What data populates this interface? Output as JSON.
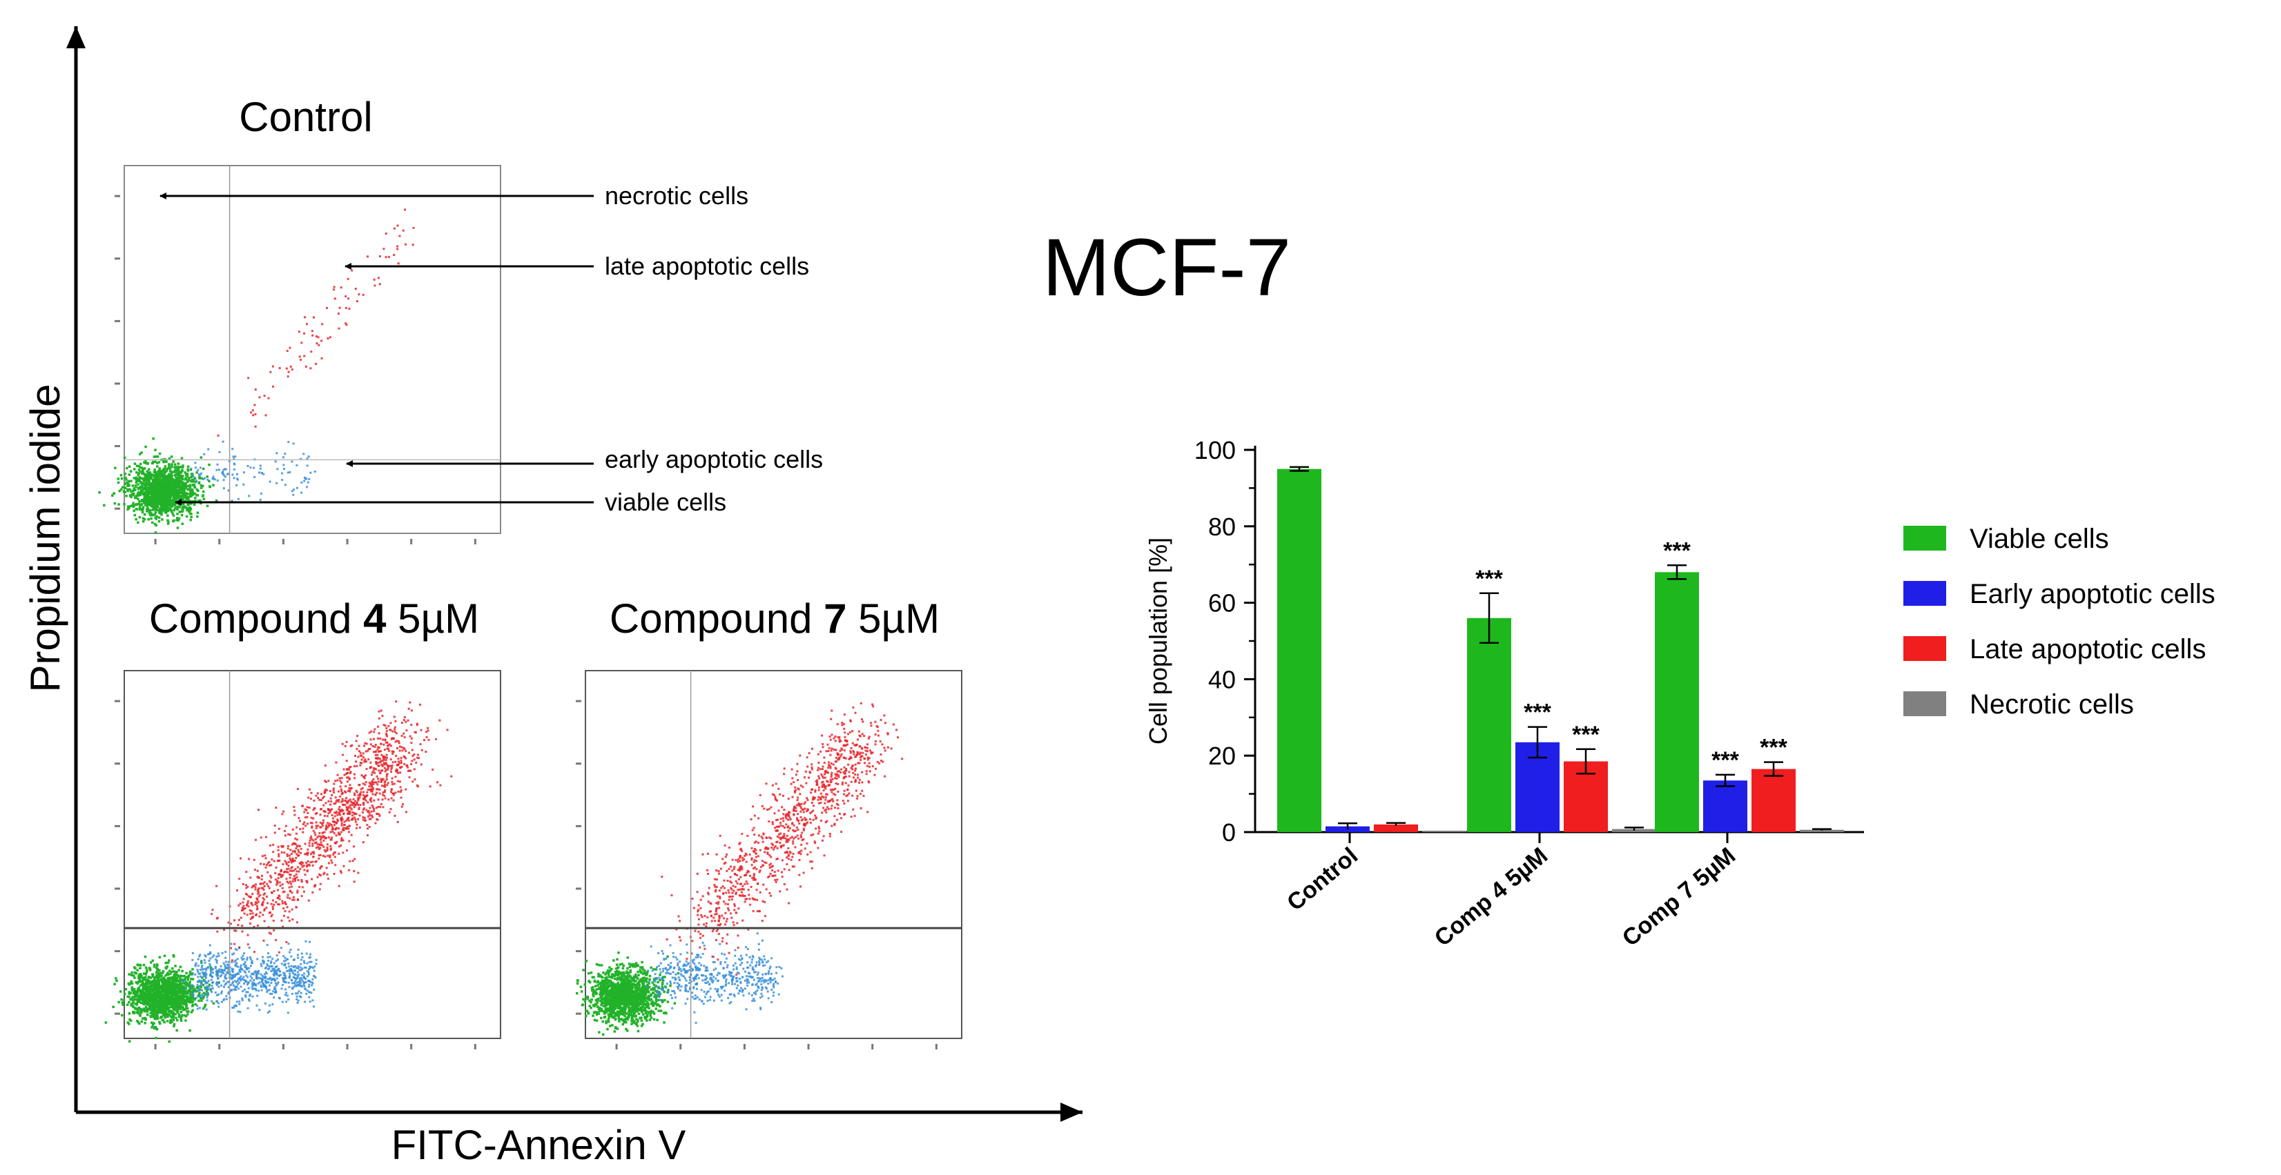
{
  "figure_title": "MCF-7",
  "flow_cytometry": {
    "y_axis_label": "Propidium iodide",
    "x_axis_label": "FITC-Annexin V",
    "panels": [
      {
        "title_prefix": "Control",
        "compound_number": "",
        "title_suffix": ""
      },
      {
        "title_prefix": "Compound ",
        "compound_number": "4",
        "title_suffix": " 5µM"
      },
      {
        "title_prefix": "Compound ",
        "compound_number": "7",
        "title_suffix": " 5µM"
      }
    ],
    "annotations": [
      "necrotic cells",
      "late apoptotic cells",
      "early apoptotic cells",
      "viable cells"
    ],
    "colors": {
      "viable": "#22b22a",
      "early": "#3a8fd8",
      "late": "#e6252a",
      "gate": "#9a9a9a"
    }
  },
  "chart_data": {
    "type": "bar",
    "title": "",
    "xlabel": "",
    "ylabel": "Cell population [%]",
    "ylim": [
      0,
      100
    ],
    "yticks": [
      0,
      20,
      40,
      60,
      80,
      100
    ],
    "categories": [
      "Control",
      "Comp 4 5µM",
      "Comp 7 5µM"
    ],
    "series": [
      {
        "name": "Viable cells",
        "color": "#1eb81e",
        "values": [
          95,
          56,
          68
        ],
        "errors": [
          0.5,
          6.5,
          1.8
        ],
        "significance": [
          "",
          "***",
          "***"
        ]
      },
      {
        "name": "Early apoptotic cells",
        "color": "#1f1fe8",
        "values": [
          1.5,
          23.5,
          13.5
        ],
        "errors": [
          0.8,
          4,
          1.5
        ],
        "significance": [
          "",
          "***",
          "***"
        ]
      },
      {
        "name": "Late apoptotic cells",
        "color": "#f01e1e",
        "values": [
          2,
          18.5,
          16.5
        ],
        "errors": [
          0.4,
          3.2,
          1.8
        ],
        "significance": [
          "",
          "***",
          "***"
        ]
      },
      {
        "name": "Necrotic cells",
        "color": "#808080",
        "values": [
          0.3,
          0.8,
          0.6
        ],
        "errors": [
          0,
          0.4,
          0.2
        ],
        "significance": [
          "",
          "",
          ""
        ]
      }
    ]
  }
}
